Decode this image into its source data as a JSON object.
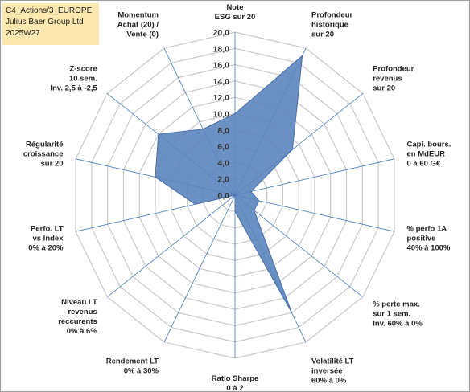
{
  "header": {
    "line1": "C4_Actions/3_EUROPE",
    "line2": "Julius Baer Group Ltd",
    "line3": "2025W27"
  },
  "colors": {
    "fill": "#5b84be",
    "stroke": "#4a6fa5",
    "grid": "#c8c8c8",
    "spoke": "#4a7cc0"
  },
  "chart_data": {
    "type": "radar",
    "rmin": 0,
    "rmax": 20,
    "tick_step": 2,
    "tick_labels": [
      "0,0",
      "2,0",
      "4,0",
      "6,0",
      "8,0",
      "10,0",
      "12,0",
      "14,0",
      "16,0",
      "18,0",
      "20,0"
    ],
    "axes": [
      {
        "label": [
          "Note",
          "ESG sur 20"
        ],
        "value": 10
      },
      {
        "label": [
          "Profondeur",
          "historique",
          "sur 20"
        ],
        "value": 19
      },
      {
        "label": [
          "Profondeur",
          "revenus",
          "sur 20"
        ],
        "value": 9
      },
      {
        "label": [
          "Capi. bours.",
          "en MdEUR",
          "0 à 60 G€"
        ],
        "value": 2
      },
      {
        "label": [
          "% perfo 1A",
          "positive",
          "40% à 100%"
        ],
        "value": 3
      },
      {
        "label": [
          "% perte max.",
          "sur 1 sem.",
          "Inv. 60% à 0%"
        ],
        "value": 3
      },
      {
        "label": [
          "Volatilité LT",
          "inversée",
          "60% à 0%"
        ],
        "value": 16
      },
      {
        "label": [
          "Ratio Sharpe",
          "0 à 2"
        ],
        "value": 2
      },
      {
        "label": [
          "Rendement LT",
          "0% à 30%"
        ],
        "value": 0
      },
      {
        "label": [
          "Niveau LT",
          "revenus",
          "reccurents",
          "0% à 6%"
        ],
        "value": 0
      },
      {
        "label": [
          "Perfo. LT",
          "vs Index",
          "0% à 20%"
        ],
        "value": 5
      },
      {
        "label": [
          "Régularité",
          "croissance",
          "sur 20"
        ],
        "value": 10
      },
      {
        "label": [
          "Z-score",
          "10 sem.",
          "Inv. 2,5 à -2,5"
        ],
        "value": 12
      },
      {
        "label": [
          "Momentum",
          "Achat (20) /",
          "Vente (0)"
        ],
        "value": 9
      }
    ]
  }
}
